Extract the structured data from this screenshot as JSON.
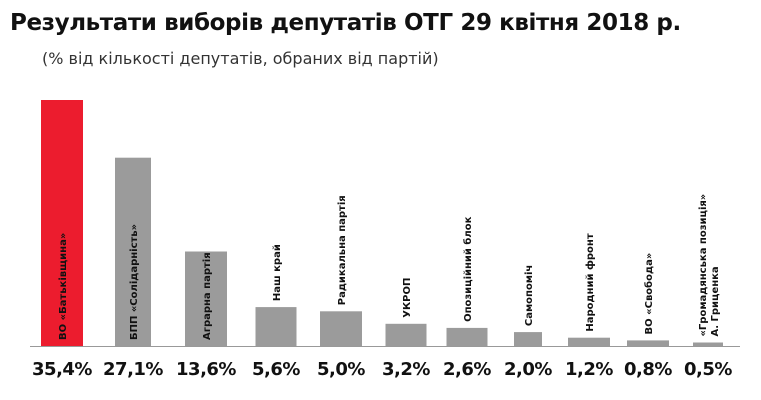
{
  "chart_data": {
    "type": "bar",
    "title": "Результати виборів депутатів ОТГ 29 квітня 2018 р.",
    "subtitle": "(% від кількості депутатів, обраних від партій)",
    "categories": [
      "ВО «Батьківщина»",
      "БПП «Солідарність»",
      "Аграрна партія",
      "Наш край",
      "Радикальна партія",
      "УКРОП",
      "Опозиційний блок",
      "Самопоміч",
      "Народний фронт",
      "ВО «Свобода»",
      [
        "«Громадянська позиція»",
        "А. Гриценка"
      ]
    ],
    "values": [
      35.4,
      27.1,
      13.6,
      5.6,
      5.0,
      3.2,
      2.6,
      2.0,
      1.2,
      0.8,
      0.5
    ],
    "value_labels": [
      "35,4%",
      "27,1%",
      "13,6%",
      "5,6%",
      "5,0%",
      "3,2%",
      "2,6%",
      "2,0%",
      "1,2%",
      "0,8%",
      "0,5%"
    ],
    "xlabel": "",
    "ylabel": "",
    "grid": false,
    "legend": "none",
    "colors": {
      "highlight": "#ec1c2e",
      "bar": "#9b9b9b",
      "text": "#111111",
      "baseline": "#999999"
    }
  }
}
